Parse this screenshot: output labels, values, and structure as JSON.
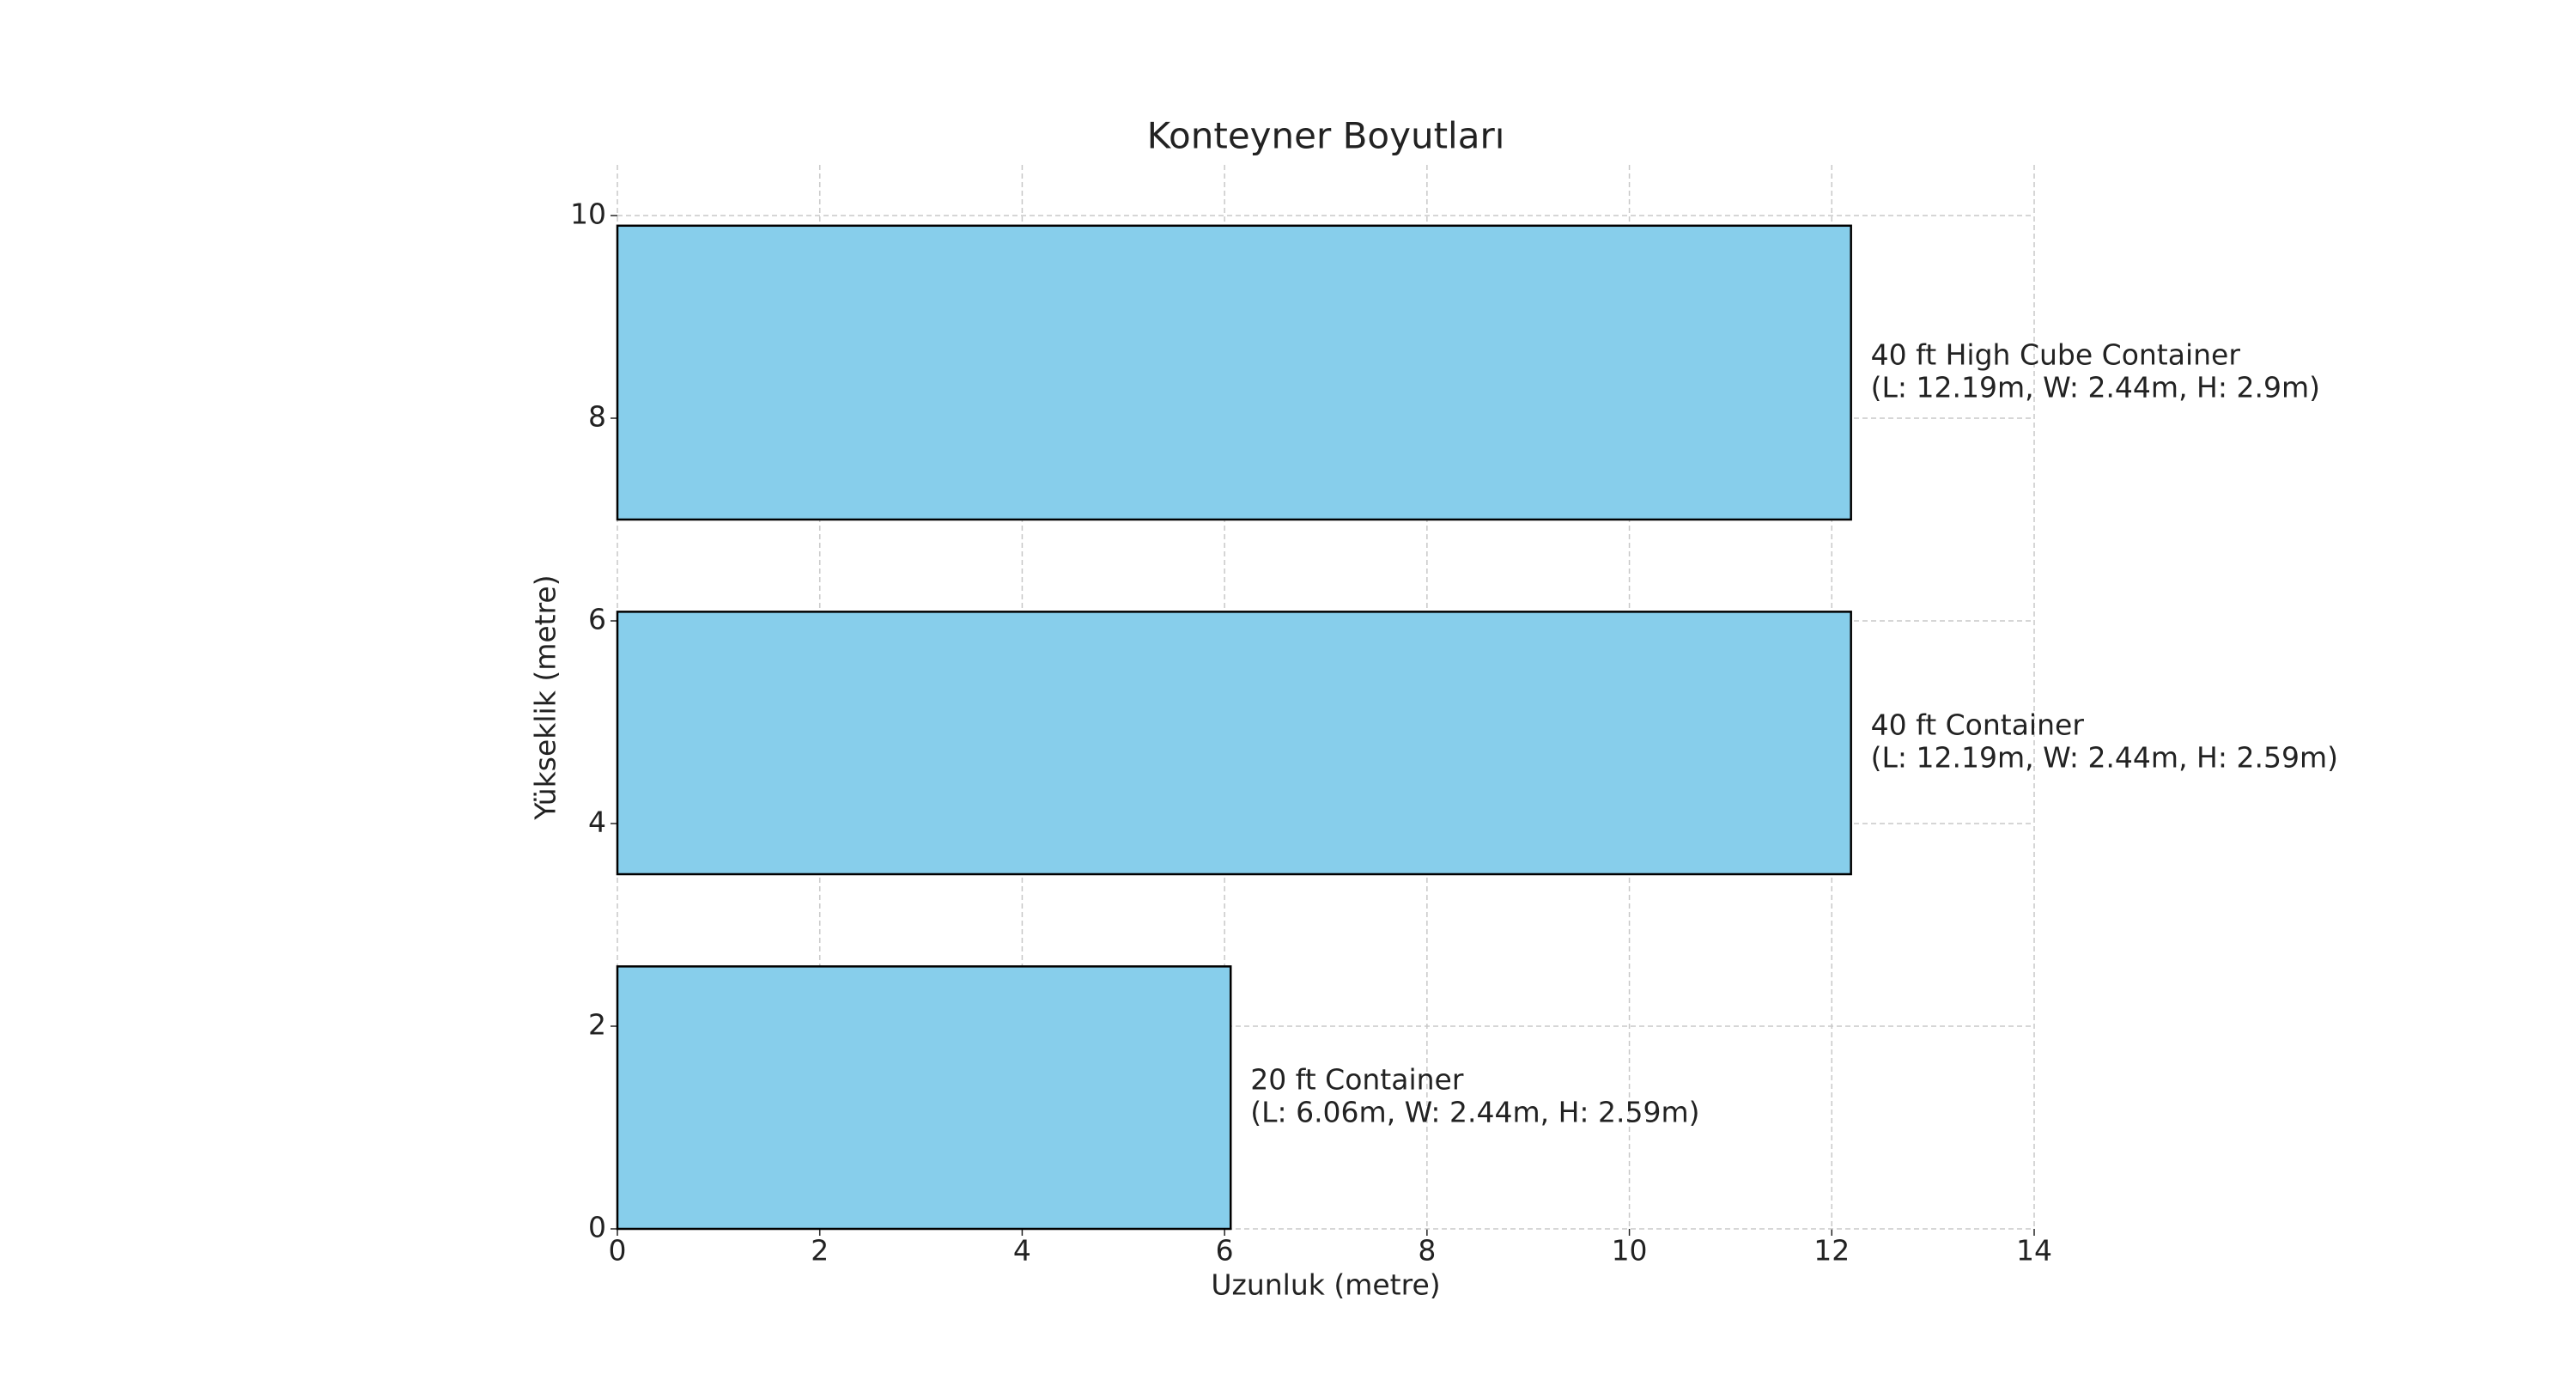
{
  "chart_data": {
    "type": "rect",
    "title": "Konteyner Boyutları",
    "xlabel": "Uzunluk (metre)",
    "ylabel": "Yükseklik (metre)",
    "color": "#87ceeb",
    "edgecolor": "#000000",
    "bars": [
      {
        "bottom": 0,
        "length": 6.06,
        "height": 2.59,
        "label": [
          "20 ft Container",
          "(L: 6.06m, W: 2.44m, H: 2.59m)"
        ]
      },
      {
        "bottom": 3.5,
        "length": 12.19,
        "height": 2.59,
        "label": [
          "40 ft Container",
          "(L: 12.19m, W: 2.44m, H: 2.59m)"
        ]
      },
      {
        "bottom": 7,
        "length": 12.19,
        "height": 2.9,
        "label": [
          "40 ft High Cube Container",
          "(L: 12.19m, W: 2.44m, H: 2.9m)"
        ]
      }
    ],
    "xlim": [
      0,
      14
    ],
    "xticks": [
      0,
      2,
      4,
      6,
      8,
      10,
      12,
      14
    ],
    "ylim": [
      0,
      10.5
    ],
    "yticks": [
      0,
      2,
      4,
      6,
      8,
      10
    ],
    "grid": true
  }
}
